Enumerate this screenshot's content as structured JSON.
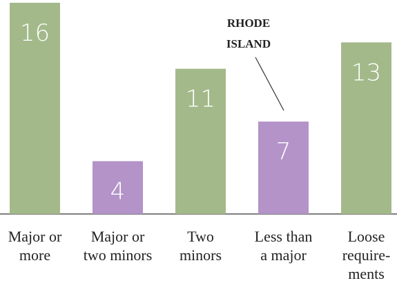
{
  "chart_data": {
    "type": "bar",
    "categories": [
      [
        "Major or",
        "more"
      ],
      [
        "Major or",
        "two minors"
      ],
      [
        "Two",
        "minors"
      ],
      [
        "Less than",
        "a major"
      ],
      [
        "Loose",
        "require-",
        "ments"
      ]
    ],
    "values": [
      16,
      4,
      11,
      7,
      13
    ],
    "colors": [
      "#a3b98a",
      "#b393c8",
      "#a3b98a",
      "#b393c8",
      "#a3b98a"
    ],
    "ylim": [
      0,
      16
    ],
    "annotation": [
      "RHODE",
      "ISLAND"
    ]
  }
}
